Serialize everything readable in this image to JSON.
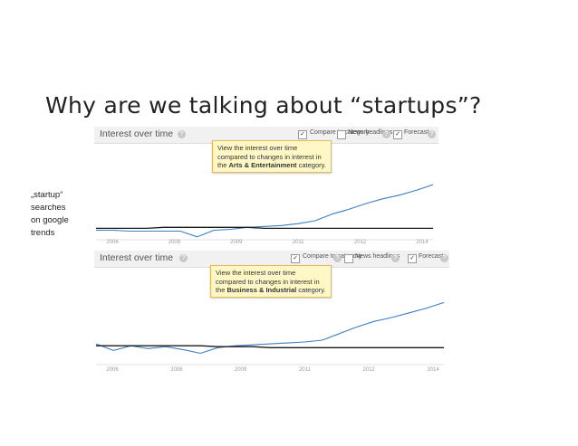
{
  "slide": {
    "title": "Why are we talking about “startups”?",
    "side_note": [
      "„startup“",
      "searches",
      "on google",
      "trends"
    ]
  },
  "colors": {
    "trend_line": "#3c7fc4",
    "category_line": "#1a1a1a",
    "tooltip_bg": "#fff8c6"
  },
  "panels": [
    {
      "header_title": "Interest over time",
      "compare_label": "Compare to category",
      "news_label": "News headlines",
      "forecast_label": "Forecast",
      "tooltip_pre": "View the interest over time compared to changes in interest in the ",
      "tooltip_category": "Arts & Entertainment",
      "tooltip_post": " category.",
      "x_ticks": [
        "2006",
        "2008",
        "2009",
        "2011",
        "2012",
        "2014"
      ]
    },
    {
      "header_title": "Interest over time",
      "compare_label": "Compare to category",
      "news_label": "News headlines",
      "forecast_label": "Forecast",
      "tooltip_pre": "View the interest over time compared to changes in interest in the ",
      "tooltip_category": "Business & Industrial",
      "tooltip_post": " category.",
      "x_ticks": [
        "2006",
        "2008",
        "2009",
        "2011",
        "2012",
        "2014"
      ]
    }
  ],
  "chart_data": [
    {
      "type": "line",
      "title": "Interest over time",
      "x": [
        2005.0,
        2005.5,
        2006.0,
        2006.5,
        2007.0,
        2007.5,
        2008.0,
        2008.5,
        2009.0,
        2009.5,
        2010.0,
        2010.5,
        2011.0,
        2011.5,
        2012.0,
        2012.5,
        2013.0,
        2013.5,
        2014.0,
        2014.5,
        2015.0
      ],
      "ylim": [
        0,
        100
      ],
      "series": [
        {
          "values": [
            10,
            10,
            9,
            9,
            9,
            9,
            3,
            10,
            11,
            13,
            14,
            15,
            17,
            20,
            27,
            32,
            38,
            43,
            47,
            52,
            58
          ]
        },
        {
          "values": [
            12,
            12,
            12,
            12,
            13,
            13,
            13,
            13,
            13,
            13,
            12,
            12,
            12,
            12,
            12,
            12,
            12,
            12,
            12,
            12,
            12
          ]
        }
      ]
    },
    {
      "type": "line",
      "title": "Interest over time",
      "x": [
        2005.0,
        2005.5,
        2006.0,
        2006.5,
        2007.0,
        2007.5,
        2008.0,
        2008.5,
        2009.0,
        2009.5,
        2010.0,
        2010.5,
        2011.0,
        2011.5,
        2012.0,
        2012.5,
        2013.0,
        2013.5,
        2014.0,
        2014.5,
        2015.0
      ],
      "ylim": [
        0,
        100
      ],
      "series": [
        {
          "values": [
            22,
            15,
            20,
            17,
            19,
            16,
            12,
            18,
            20,
            21,
            22,
            23,
            24,
            26,
            33,
            40,
            46,
            50,
            55,
            60,
            66
          ]
        },
        {
          "values": [
            20,
            20,
            20,
            20,
            20,
            20,
            20,
            19,
            19,
            19,
            18,
            18,
            18,
            18,
            18,
            18,
            18,
            18,
            18,
            18,
            18
          ]
        }
      ]
    }
  ]
}
